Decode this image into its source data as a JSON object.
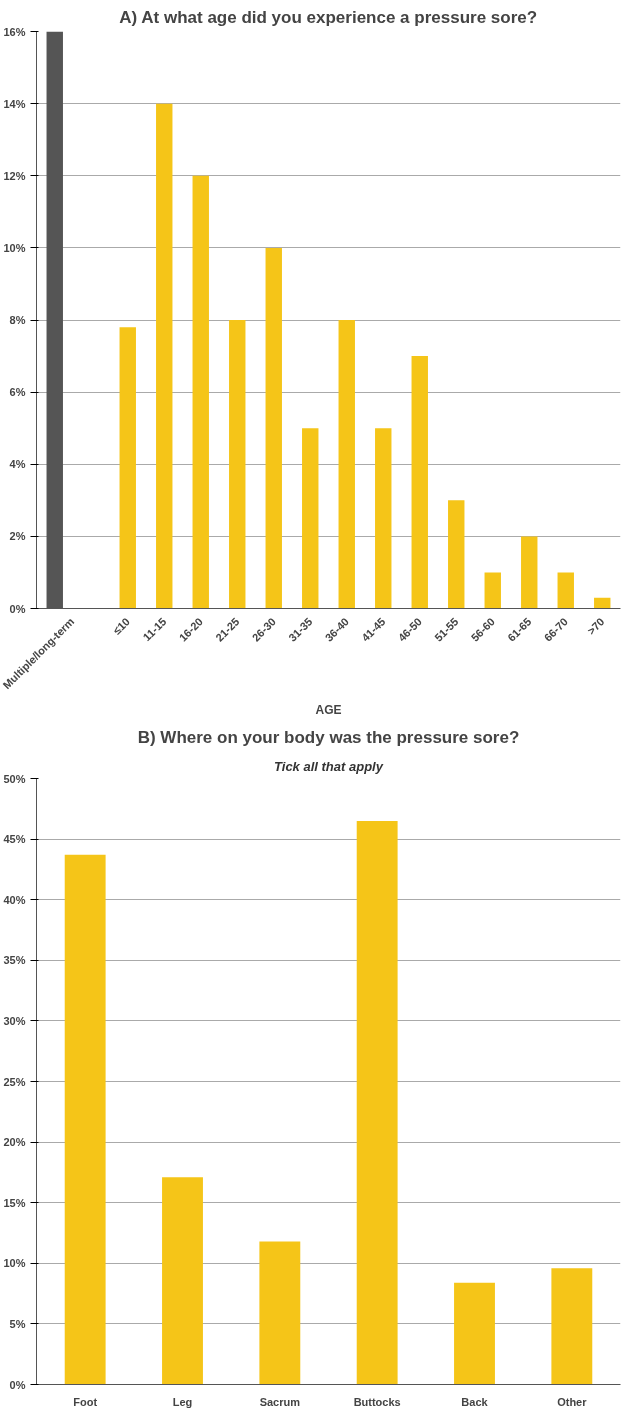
{
  "chart_data": [
    {
      "type": "bar",
      "title": "A) At what age did you experience a pressure sore?",
      "xlabel": "AGE",
      "categories": [
        "Multiple/long-term",
        null,
        "≤10",
        "11-15",
        "16-20",
        "21-25",
        "26-30",
        "31-35",
        "36-40",
        "41-45",
        "46-50",
        "51-55",
        "56-60",
        "61-65",
        "66-70",
        ">70"
      ],
      "values": [
        16,
        null,
        7.8,
        14,
        12,
        8,
        10,
        5,
        8,
        5,
        7,
        3,
        1,
        2,
        1,
        0.3
      ],
      "colors": [
        "#555555",
        null,
        "#f5c518",
        "#f5c518",
        "#f5c518",
        "#f5c518",
        "#f5c518",
        "#f5c518",
        "#f5c518",
        "#f5c518",
        "#f5c518",
        "#f5c518",
        "#f5c518",
        "#f5c518",
        "#f5c518",
        "#f5c518"
      ],
      "ylim": [
        0,
        16
      ],
      "yticks": [
        {
          "value": 0,
          "label": "0%"
        },
        {
          "value": 2,
          "label": "2%"
        },
        {
          "value": 4,
          "label": "4%"
        },
        {
          "value": 6,
          "label": "6%"
        },
        {
          "value": 8,
          "label": "8%"
        },
        {
          "value": 10,
          "label": "10%"
        },
        {
          "value": 12,
          "label": "12%"
        },
        {
          "value": 14,
          "label": "14%"
        },
        {
          "value": 16,
          "label": "16%"
        }
      ],
      "grid": "y"
    },
    {
      "type": "bar",
      "title": "B) Where on your body was the pressure sore?",
      "subtitle": "Tick all that apply",
      "categories": [
        "Foot",
        "Leg",
        "Sacrum",
        "Buttocks",
        "Back",
        "Other"
      ],
      "values": [
        43.7,
        17.1,
        11.8,
        46.5,
        8.4,
        9.6
      ],
      "colors": [
        "#f5c518",
        "#f5c518",
        "#f5c518",
        "#f5c518",
        "#f5c518",
        "#f5c518"
      ],
      "ylim": [
        0,
        50
      ],
      "yticks": [
        {
          "value": 0,
          "label": "0%"
        },
        {
          "value": 5,
          "label": "5%"
        },
        {
          "value": 10,
          "label": "10%"
        },
        {
          "value": 15,
          "label": "15%"
        },
        {
          "value": 20,
          "label": "20%"
        },
        {
          "value": 25,
          "label": "25%"
        },
        {
          "value": 30,
          "label": "30%"
        },
        {
          "value": 35,
          "label": "35%"
        },
        {
          "value": 40,
          "label": "40%"
        },
        {
          "value": 45,
          "label": "45%"
        },
        {
          "value": 50,
          "label": "50%"
        }
      ],
      "grid": "y"
    }
  ]
}
